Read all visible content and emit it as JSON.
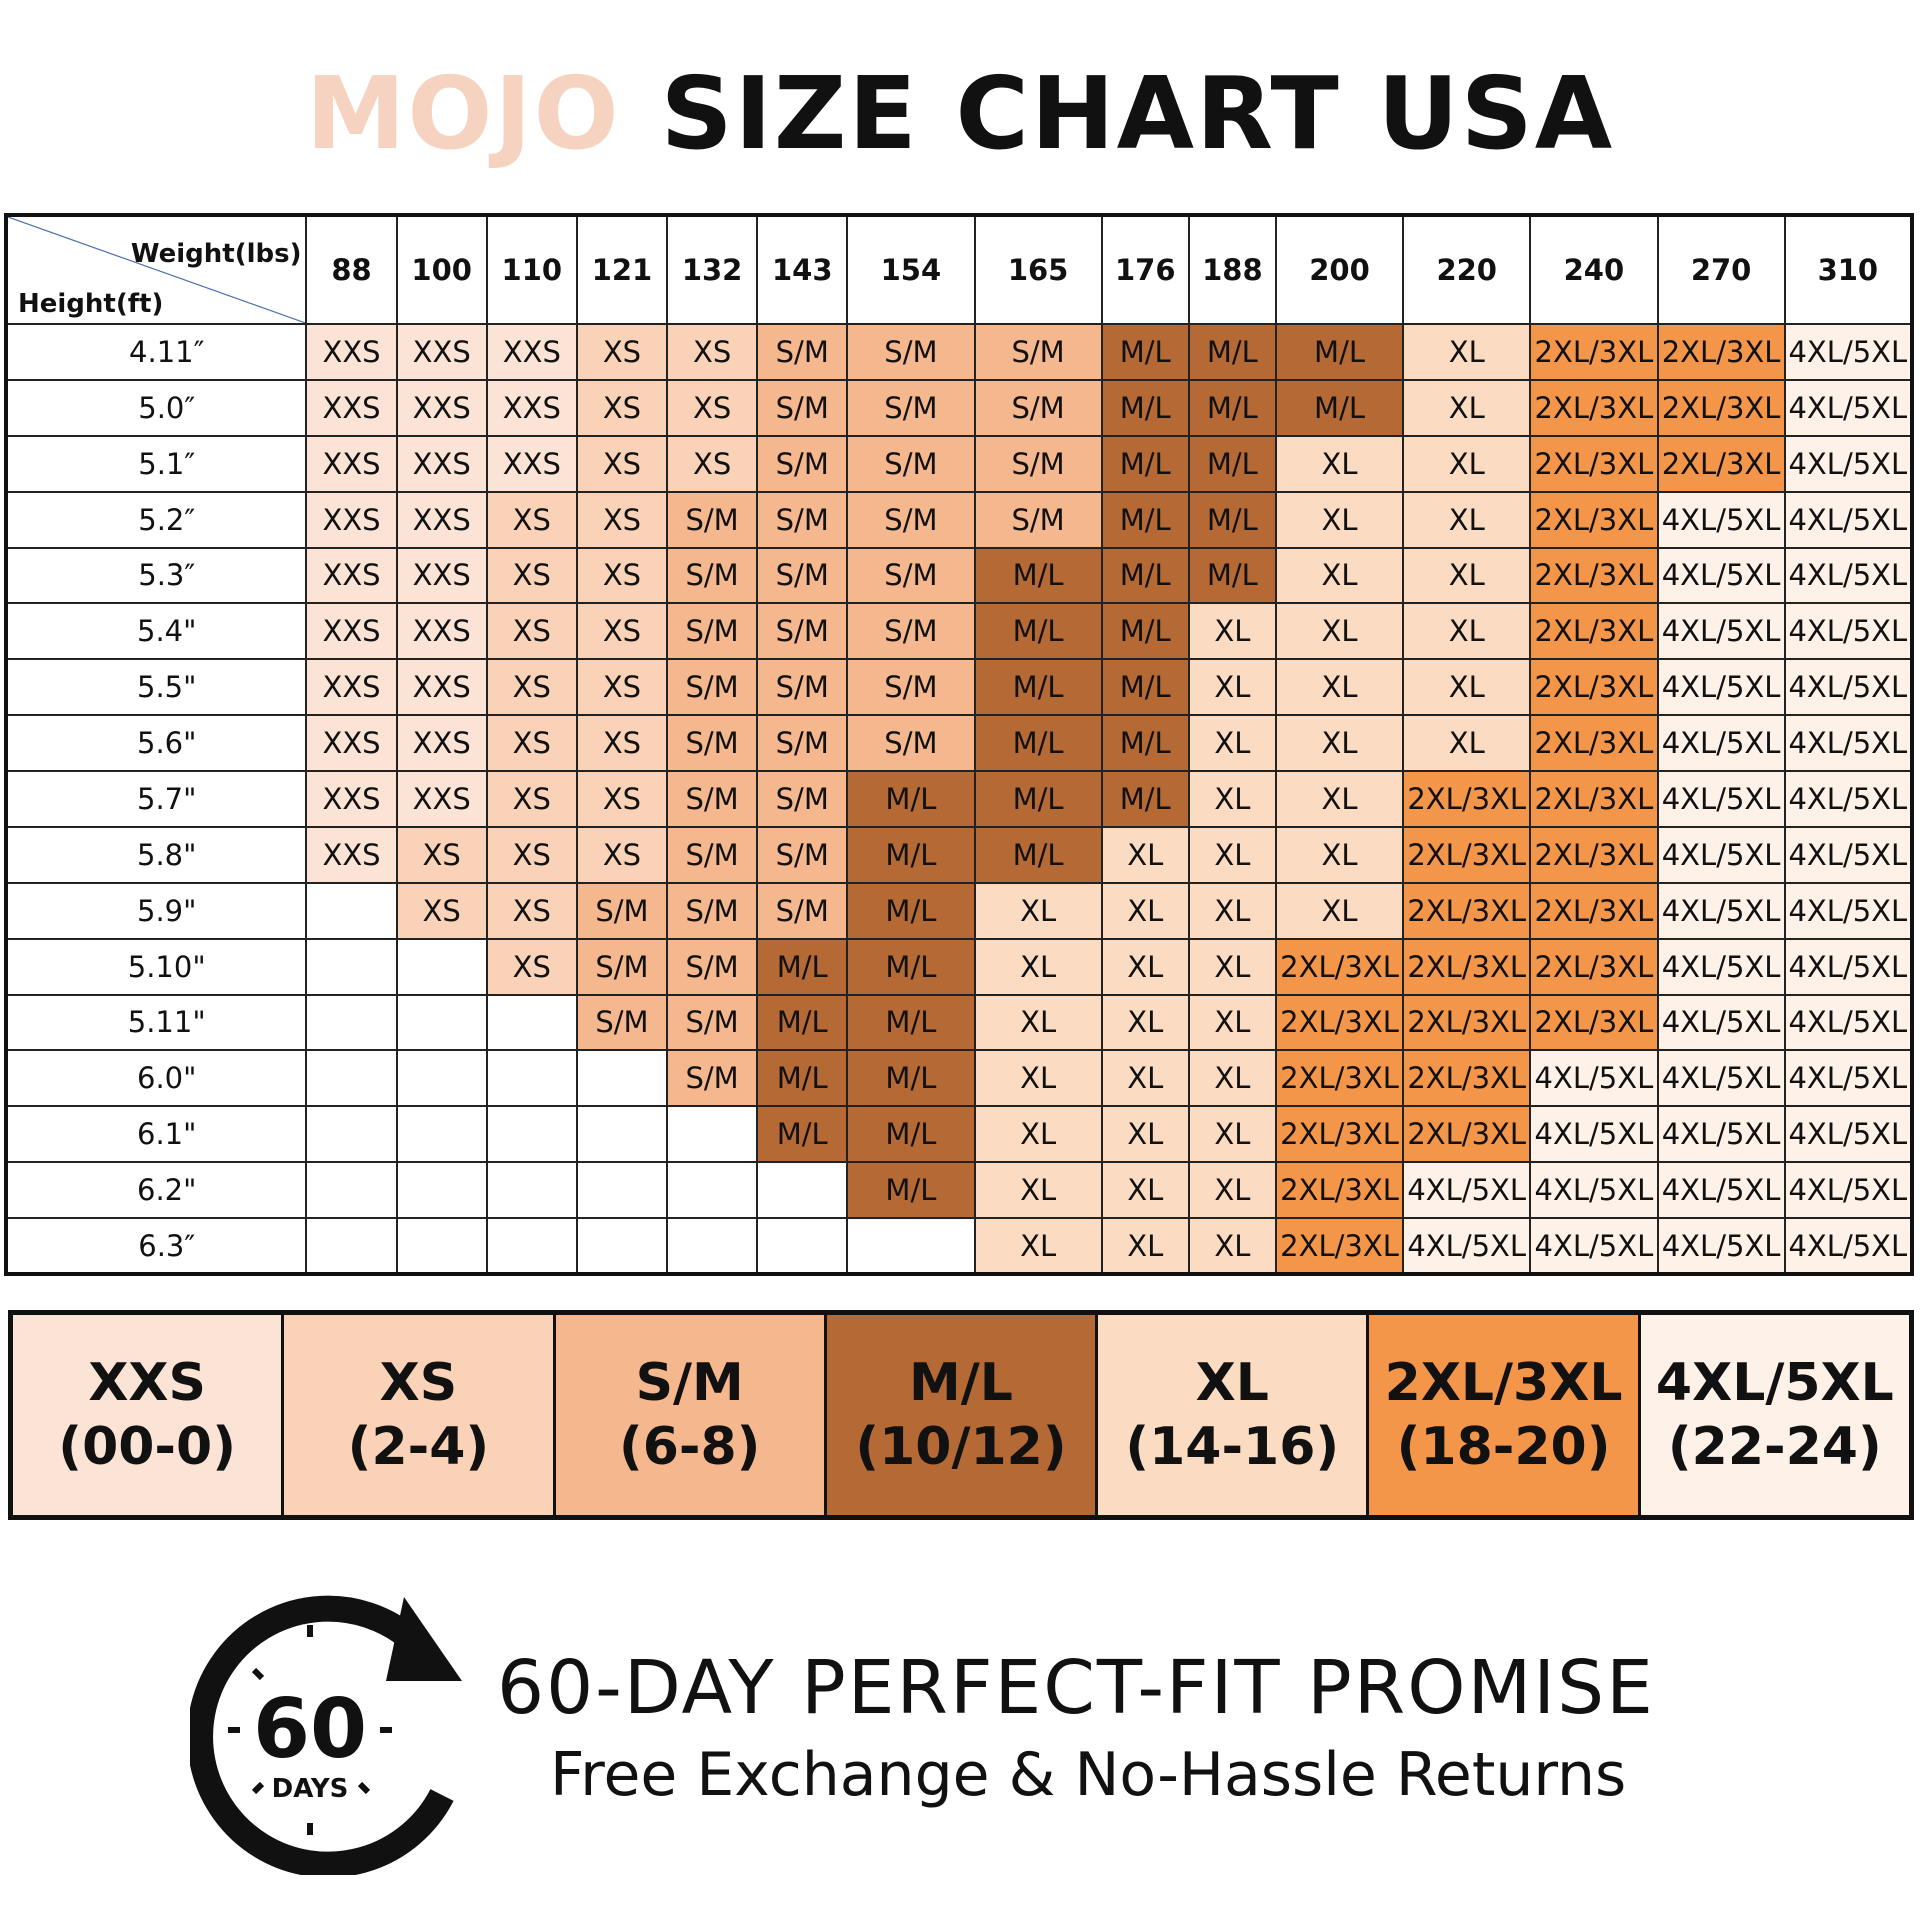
{
  "title": {
    "brand": "MOJO",
    "text": "SIZE CHART USA"
  },
  "chart_data": {
    "type": "table",
    "corner_labels": {
      "weight": "Weight(lbs)",
      "height": "Height(ft)"
    },
    "weights": [
      "88",
      "100",
      "110",
      "121",
      "132",
      "143",
      "154",
      "165",
      "176",
      "188",
      "200",
      "220",
      "240",
      "270",
      "310"
    ],
    "heights": [
      "4.11″",
      "5.0″",
      "5.1″",
      "5.2″",
      "5.3″",
      "5.4\"",
      "5.5\"",
      "5.6\"",
      "5.7\"",
      "5.8\"",
      "5.9\"",
      "5.10\"",
      "5.11\"",
      "6.0\"",
      "6.1\"",
      "6.2\"",
      "6.3″"
    ],
    "rows": [
      [
        "XXS",
        "XXS",
        "XXS",
        "XS",
        "XS",
        "S/M",
        "S/M",
        "S/M",
        "M/L",
        "M/L",
        "M/L",
        "XL",
        "2XL/3XL",
        "2XL/3XL",
        "4XL/5XL"
      ],
      [
        "XXS",
        "XXS",
        "XXS",
        "XS",
        "XS",
        "S/M",
        "S/M",
        "S/M",
        "M/L",
        "M/L",
        "M/L",
        "XL",
        "2XL/3XL",
        "2XL/3XL",
        "4XL/5XL"
      ],
      [
        "XXS",
        "XXS",
        "XXS",
        "XS",
        "XS",
        "S/M",
        "S/M",
        "S/M",
        "M/L",
        "M/L",
        "XL",
        "XL",
        "2XL/3XL",
        "2XL/3XL",
        "4XL/5XL"
      ],
      [
        "XXS",
        "XXS",
        "XS",
        "XS",
        "S/M",
        "S/M",
        "S/M",
        "S/M",
        "M/L",
        "M/L",
        "XL",
        "XL",
        "2XL/3XL",
        "4XL/5XL",
        "4XL/5XL"
      ],
      [
        "XXS",
        "XXS",
        "XS",
        "XS",
        "S/M",
        "S/M",
        "S/M",
        "M/L",
        "M/L",
        "M/L",
        "XL",
        "XL",
        "2XL/3XL",
        "4XL/5XL",
        "4XL/5XL"
      ],
      [
        "XXS",
        "XXS",
        "XS",
        "XS",
        "S/M",
        "S/M",
        "S/M",
        "M/L",
        "M/L",
        "XL",
        "XL",
        "XL",
        "2XL/3XL",
        "4XL/5XL",
        "4XL/5XL"
      ],
      [
        "XXS",
        "XXS",
        "XS",
        "XS",
        "S/M",
        "S/M",
        "S/M",
        "M/L",
        "M/L",
        "XL",
        "XL",
        "XL",
        "2XL/3XL",
        "4XL/5XL",
        "4XL/5XL"
      ],
      [
        "XXS",
        "XXS",
        "XS",
        "XS",
        "S/M",
        "S/M",
        "S/M",
        "M/L",
        "M/L",
        "XL",
        "XL",
        "XL",
        "2XL/3XL",
        "4XL/5XL",
        "4XL/5XL"
      ],
      [
        "XXS",
        "XXS",
        "XS",
        "XS",
        "S/M",
        "S/M",
        "M/L",
        "M/L",
        "M/L",
        "XL",
        "XL",
        "2XL/3XL",
        "2XL/3XL",
        "4XL/5XL",
        "4XL/5XL"
      ],
      [
        "XXS",
        "XS",
        "XS",
        "XS",
        "S/M",
        "S/M",
        "M/L",
        "M/L",
        "XL",
        "XL",
        "XL",
        "2XL/3XL",
        "2XL/3XL",
        "4XL/5XL",
        "4XL/5XL"
      ],
      [
        "",
        "XS",
        "XS",
        "S/M",
        "S/M",
        "S/M",
        "M/L",
        "XL",
        "XL",
        "XL",
        "XL",
        "2XL/3XL",
        "2XL/3XL",
        "4XL/5XL",
        "4XL/5XL"
      ],
      [
        "",
        "",
        "XS",
        "S/M",
        "S/M",
        "M/L",
        "M/L",
        "XL",
        "XL",
        "XL",
        "2XL/3XL",
        "2XL/3XL",
        "2XL/3XL",
        "4XL/5XL",
        "4XL/5XL"
      ],
      [
        "",
        "",
        "",
        "S/M",
        "S/M",
        "M/L",
        "M/L",
        "XL",
        "XL",
        "XL",
        "2XL/3XL",
        "2XL/3XL",
        "2XL/3XL",
        "4XL/5XL",
        "4XL/5XL"
      ],
      [
        "",
        "",
        "",
        "",
        "S/M",
        "M/L",
        "M/L",
        "XL",
        "XL",
        "XL",
        "2XL/3XL",
        "2XL/3XL",
        "4XL/5XL",
        "4XL/5XL",
        "4XL/5XL"
      ],
      [
        "",
        "",
        "",
        "",
        "",
        "M/L",
        "M/L",
        "XL",
        "XL",
        "XL",
        "2XL/3XL",
        "2XL/3XL",
        "4XL/5XL",
        "4XL/5XL",
        "4XL/5XL"
      ],
      [
        "",
        "",
        "",
        "",
        "",
        "",
        "M/L",
        "XL",
        "XL",
        "XL",
        "2XL/3XL",
        "4XL/5XL",
        "4XL/5XL",
        "4XL/5XL",
        "4XL/5XL"
      ],
      [
        "",
        "",
        "",
        "",
        "",
        "",
        "",
        "XL",
        "XL",
        "XL",
        "2XL/3XL",
        "4XL/5XL",
        "4XL/5XL",
        "4XL/5XL",
        "4XL/5XL"
      ]
    ],
    "size_colors": {
      "XXS": "#fbe4d6",
      "XS": "#f9d2b7",
      "S/M": "#f4b78e",
      "M/L": "#b56a35",
      "XL": "#fbdcc3",
      "2XL/3XL": "#f4964a",
      "4XL/5XL": "#fdf1e8"
    }
  },
  "legend": [
    {
      "size": "XXS",
      "range": "(00-0)"
    },
    {
      "size": "XS",
      "range": "(2-4)"
    },
    {
      "size": "S/M",
      "range": "(6-8)"
    },
    {
      "size": "M/L",
      "range": "(10/12)"
    },
    {
      "size": "XL",
      "range": "(14-16)"
    },
    {
      "size": "2XL/3XL",
      "range": "(18-20)"
    },
    {
      "size": "4XL/5XL",
      "range": "(22-24)"
    }
  ],
  "promise": {
    "badge_number": "60",
    "badge_unit": "DAYS",
    "title": "60-DAY PERFECT-FIT PROMISE",
    "subtitle": "Free Exchange & No-Hassle Returns"
  },
  "colors": {
    "brand": "#f6d3c0",
    "text": "#111111",
    "border": "#222222"
  }
}
